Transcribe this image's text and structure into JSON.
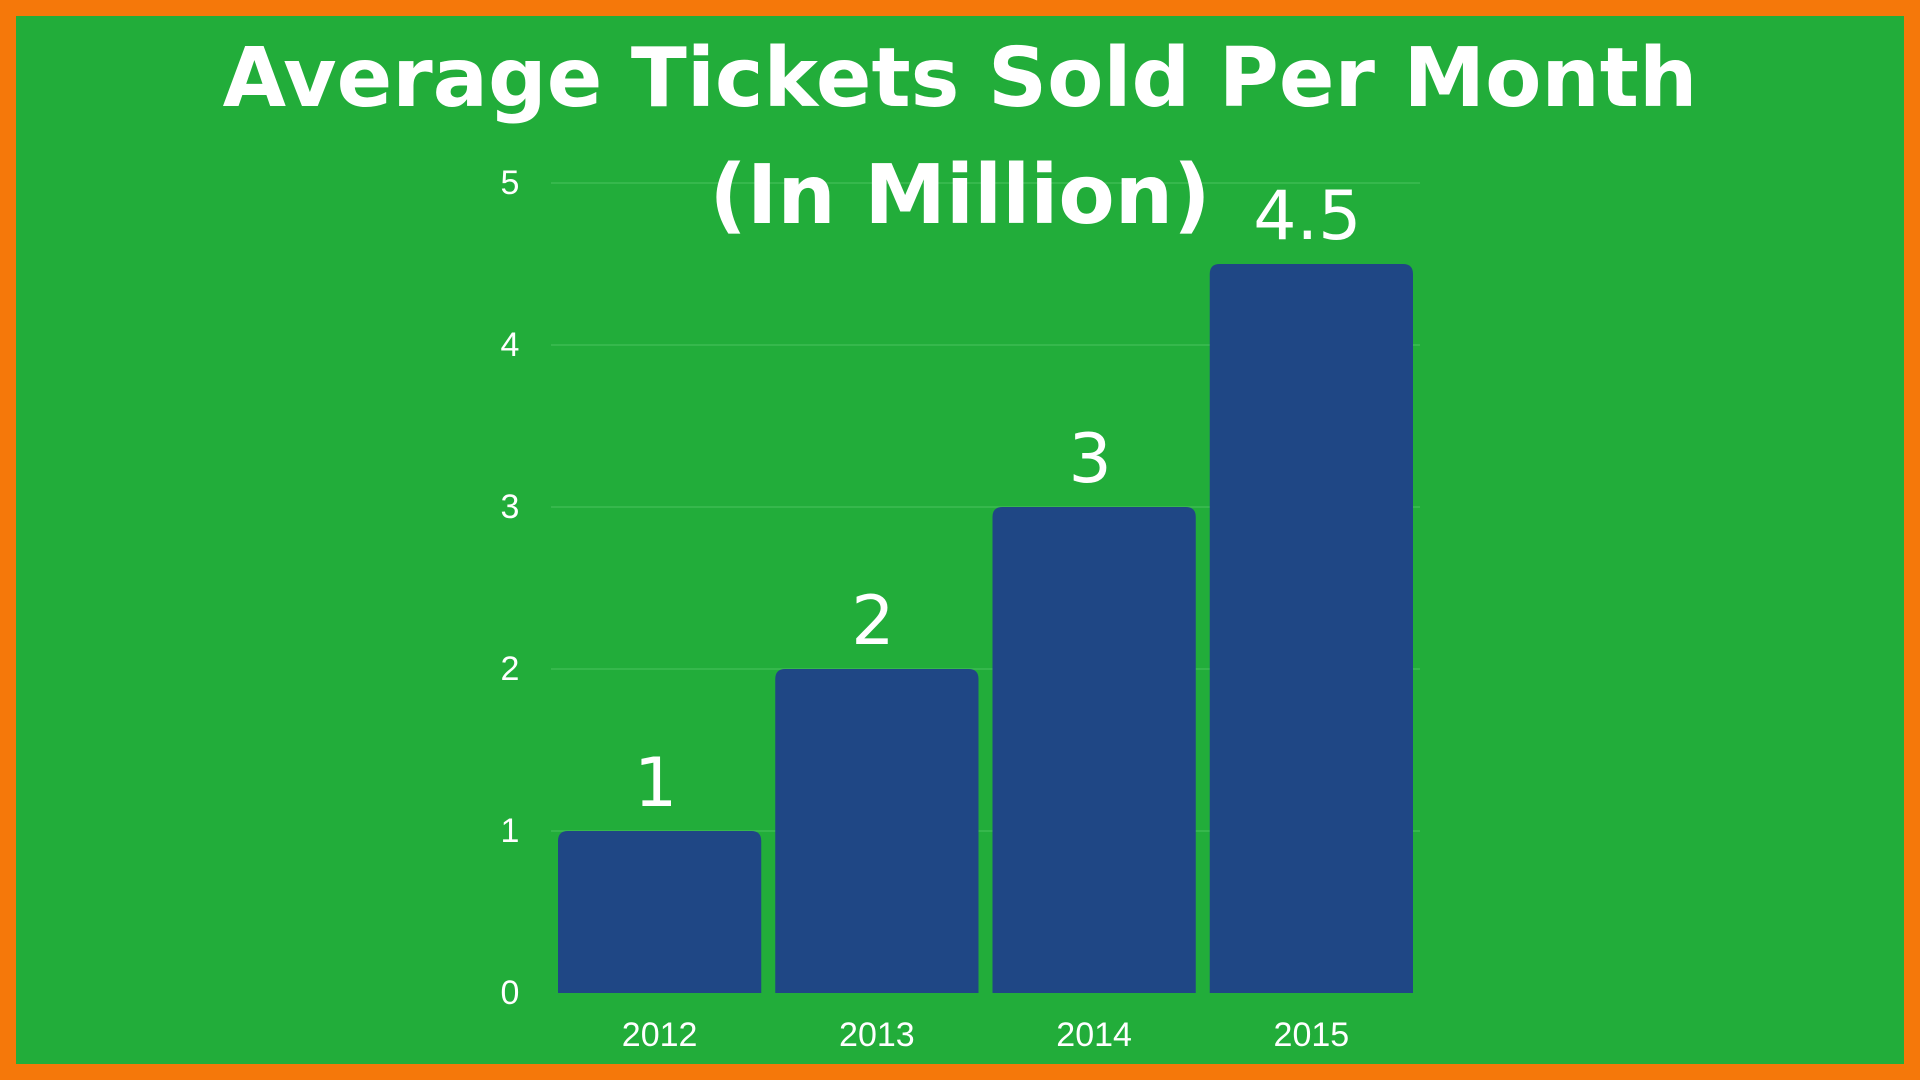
{
  "colors": {
    "border": "#F5780A",
    "background": "#22AD3A",
    "bar": "#1F4785",
    "gridline": "#3CBB52",
    "text": "#FFFFFF"
  },
  "chart_data": {
    "type": "bar",
    "title_lines": [
      "Average Tickets Sold Per Month",
      "(In Million)"
    ],
    "categories": [
      "2012",
      "2013",
      "2014",
      "2015"
    ],
    "values": [
      1,
      2,
      3,
      4.5
    ],
    "value_labels": [
      "1",
      "2",
      "3",
      "4.5"
    ],
    "yticks": [
      "0",
      "1",
      "2",
      "3",
      "4",
      "5"
    ],
    "ylim": [
      0,
      5
    ],
    "grid": true,
    "legend": "none",
    "xlabel": "",
    "ylabel": ""
  }
}
